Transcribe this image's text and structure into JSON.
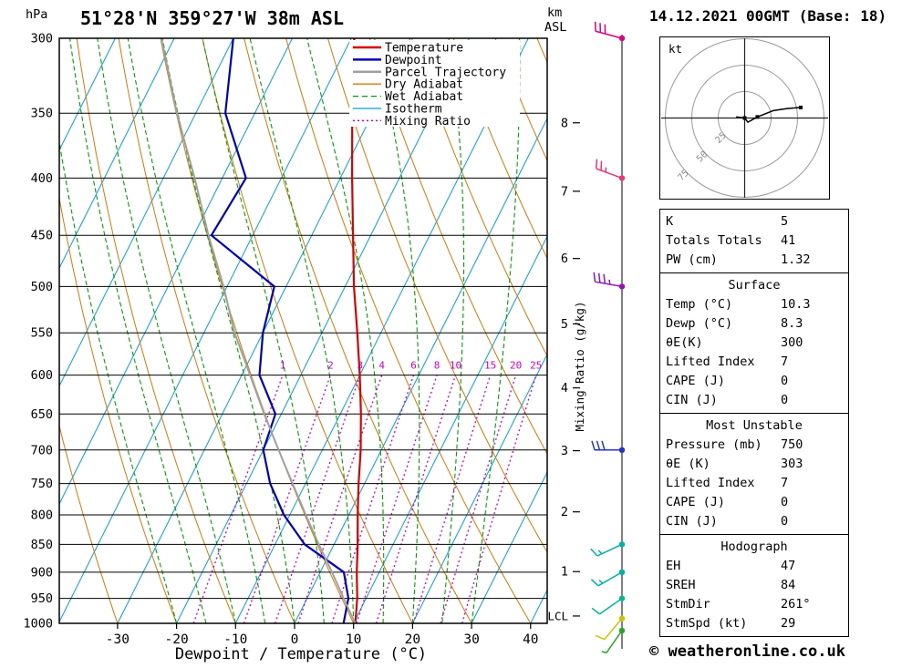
{
  "header": {
    "station": "51°28'N 359°27'W 38m ASL",
    "datetime": "14.12.2021 00GMT (Base: 18)",
    "pressure_unit": "hPa",
    "alt_unit_line1": "km",
    "alt_unit_line2": "ASL"
  },
  "chart_data": {
    "type": "line",
    "title": "51°28'N 359°27'W 38m ASL",
    "xlabel": "Dewpoint / Temperature (°C)",
    "right_axis_label": "Mixing Ratio (g/kg)",
    "x_ticks": [
      -30,
      -20,
      -10,
      0,
      10,
      20,
      30,
      40
    ],
    "pressure_ticks": [
      300,
      350,
      400,
      450,
      500,
      550,
      600,
      650,
      700,
      750,
      800,
      850,
      900,
      950,
      1000
    ],
    "p_range": [
      300,
      1000
    ],
    "km_ticks": [
      {
        "label": "8",
        "p": 357
      },
      {
        "label": "7",
        "p": 411
      },
      {
        "label": "6",
        "p": 472
      },
      {
        "label": "5",
        "p": 540
      },
      {
        "label": "4",
        "p": 616
      },
      {
        "label": "3",
        "p": 701
      },
      {
        "label": "2",
        "p": 795
      },
      {
        "label": "1",
        "p": 899
      },
      {
        "label": "LCL",
        "p": 985
      }
    ],
    "background": {
      "isotherms_c": {
        "min": -90,
        "max": 40,
        "step": 10,
        "color": "#00a0dd"
      },
      "dry_adiabats_theta_c": {
        "min": -40,
        "max": 110,
        "step": 10,
        "color": "#d97700"
      },
      "wet_adiabats_thetaw_c": {
        "min": -20,
        "max": 30,
        "step": 5,
        "color": "#00a000"
      },
      "mixing_ratio_gkg": [
        1,
        2,
        3,
        4,
        6,
        8,
        10,
        15,
        20,
        25
      ],
      "mixing_ratio_color": "#cc00cc"
    },
    "series": [
      {
        "name": "Temperature",
        "color": "#dd0000",
        "width": 2.2,
        "points": [
          [
            1000,
            10.3
          ],
          [
            950,
            8.5
          ],
          [
            900,
            6.2
          ],
          [
            850,
            4
          ],
          [
            800,
            1.5
          ],
          [
            750,
            -1
          ],
          [
            700,
            -3.5
          ],
          [
            650,
            -6.5
          ],
          [
            600,
            -10
          ],
          [
            550,
            -14
          ],
          [
            500,
            -18.5
          ],
          [
            450,
            -23
          ],
          [
            400,
            -28
          ],
          [
            350,
            -33.5
          ],
          [
            300,
            -39.5
          ]
        ]
      },
      {
        "name": "Dewpoint",
        "color": "#0000bb",
        "width": 2.2,
        "points": [
          [
            1000,
            8.3
          ],
          [
            950,
            7
          ],
          [
            900,
            4
          ],
          [
            850,
            -5
          ],
          [
            800,
            -11
          ],
          [
            750,
            -16
          ],
          [
            700,
            -20
          ],
          [
            650,
            -21
          ],
          [
            600,
            -27
          ],
          [
            550,
            -30
          ],
          [
            500,
            -32
          ],
          [
            450,
            -47
          ],
          [
            400,
            -46
          ],
          [
            350,
            -55
          ],
          [
            300,
            -60
          ]
        ]
      },
      {
        "name": "Parcel Trajectory",
        "color": "#a0a0a0",
        "width": 2,
        "points": [
          [
            1000,
            10.3
          ],
          [
            950,
            6.2
          ],
          [
            900,
            2
          ],
          [
            850,
            -2.6
          ],
          [
            800,
            -7.3
          ],
          [
            750,
            -12.2
          ],
          [
            700,
            -17.4
          ],
          [
            650,
            -22.9
          ],
          [
            600,
            -28.6
          ],
          [
            550,
            -34.8
          ],
          [
            500,
            -40.6
          ],
          [
            450,
            -47.5
          ],
          [
            400,
            -54.7
          ],
          [
            350,
            -63.2
          ],
          [
            300,
            -72.2
          ]
        ]
      }
    ],
    "legend": [
      {
        "label": "Temperature",
        "color": "#dd0000",
        "style": "solid",
        "width": 2.5
      },
      {
        "label": "Dewpoint",
        "color": "#0000bb",
        "style": "solid",
        "width": 2.5
      },
      {
        "label": "Parcel Trajectory",
        "color": "#a0a0a0",
        "style": "solid",
        "width": 2.5
      },
      {
        "label": "Dry Adiabat",
        "color": "#d97700",
        "style": "solid",
        "width": 1.3
      },
      {
        "label": "Wet Adiabat",
        "color": "#00a000",
        "style": "dashed",
        "width": 1.3
      },
      {
        "label": "Isotherm",
        "color": "#00a0dd",
        "style": "solid",
        "width": 1.3
      },
      {
        "label": "Mixing Ratio",
        "color": "#cc00cc",
        "style": "dotted",
        "width": 1.5
      }
    ]
  },
  "wind_barbs": [
    {
      "p": 300,
      "from_deg": 285,
      "speed_kt": 30,
      "color": "#dd0080"
    },
    {
      "p": 400,
      "from_deg": 290,
      "speed_kt": 25,
      "color": "#ee3377"
    },
    {
      "p": 500,
      "from_deg": 280,
      "speed_kt": 35,
      "color": "#9911bb"
    },
    {
      "p": 700,
      "from_deg": 270,
      "speed_kt": 30,
      "color": "#2233cc"
    },
    {
      "p": 850,
      "from_deg": 245,
      "speed_kt": 15,
      "color": "#00b0b0"
    },
    {
      "p": 900,
      "from_deg": 240,
      "speed_kt": 15,
      "color": "#00b0b0"
    },
    {
      "p": 950,
      "from_deg": 235,
      "speed_kt": 10,
      "color": "#00b89a"
    },
    {
      "p": 990,
      "from_deg": 220,
      "speed_kt": 10,
      "color": "#c8c800"
    },
    {
      "p": 1015,
      "from_deg": 215,
      "speed_kt": 5,
      "color": "#22aa22"
    }
  ],
  "hodograph": {
    "unit_label": "kt",
    "ring_values_kt": [
      25,
      50,
      75
    ],
    "trace_uv_kt": [
      [
        -8,
        1
      ],
      [
        0,
        0
      ],
      [
        3,
        -4
      ],
      [
        12,
        1
      ],
      [
        27,
        7
      ],
      [
        40,
        9
      ],
      [
        53,
        10
      ]
    ],
    "marker_uv_kt": [
      [
        0,
        0
      ],
      [
        12,
        1
      ],
      [
        53,
        10
      ]
    ]
  },
  "panel": {
    "sections": [
      {
        "title": "",
        "rows": [
          [
            "K",
            "5"
          ],
          [
            "Totals Totals",
            "41"
          ],
          [
            "PW (cm)",
            "1.32"
          ]
        ]
      },
      {
        "title": "Surface",
        "rows": [
          [
            "Temp (°C)",
            "10.3"
          ],
          [
            "Dewp (°C)",
            "8.3"
          ],
          [
            "θE(K)",
            "300"
          ],
          [
            "Lifted Index",
            "7"
          ],
          [
            "CAPE (J)",
            "0"
          ],
          [
            "CIN (J)",
            "0"
          ]
        ]
      },
      {
        "title": "Most Unstable",
        "rows": [
          [
            "Pressure (mb)",
            "750"
          ],
          [
            "θE (K)",
            "303"
          ],
          [
            "Lifted Index",
            "7"
          ],
          [
            "CAPE (J)",
            "0"
          ],
          [
            "CIN (J)",
            "0"
          ]
        ]
      },
      {
        "title": "Hodograph",
        "rows": [
          [
            "EH",
            "47"
          ],
          [
            "SREH",
            "84"
          ],
          [
            "StmDir",
            "261°"
          ],
          [
            "StmSpd (kt)",
            "29"
          ]
        ]
      }
    ]
  },
  "footer": {
    "copyright": "© weatheronline.co.uk"
  }
}
